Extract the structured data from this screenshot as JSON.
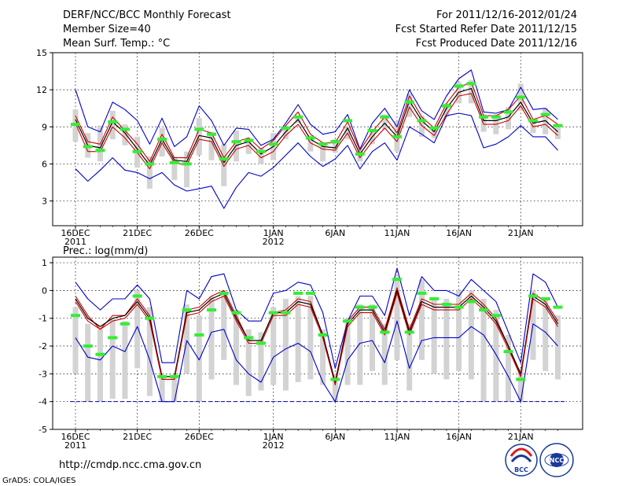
{
  "header": {
    "title": "DERF/NCC/BCC Monthly Forecast",
    "member_size": "Member Size=40",
    "variable1": "Mean Surf. Temp.: °C",
    "period": "For 2011/12/16-2012/01/24",
    "refer_date": "Fcst Started Refer Date 2011/12/15",
    "produced_date": "Fcst Produced Date 2011/12/16"
  },
  "colors": {
    "box": "#d3d3d3",
    "median": "#33ee33",
    "mean": "#000000",
    "member": "#cc0000",
    "envelope": "#0000cc",
    "threshold": "#0000aa"
  },
  "footer": {
    "url": "http://cmdp.ncc.cma.gov.cn",
    "credit": "GrADS: COLA/IGES",
    "logo_bcc": "BCC",
    "logo_ncc": "NCC"
  },
  "chart_data": [
    {
      "type": "line",
      "title": "Mean Surf. Temp.: °C",
      "ylim": [
        1,
        15
      ],
      "yticks": [
        3,
        6,
        9,
        12,
        15
      ],
      "x": [
        1,
        2,
        3,
        4,
        5,
        6,
        7,
        8,
        9,
        10,
        11,
        12,
        13,
        14,
        15,
        16,
        17,
        18,
        19,
        20,
        21,
        22,
        23,
        24,
        25,
        26,
        27,
        28,
        29,
        30,
        31,
        32,
        33,
        34,
        35,
        36,
        37,
        38,
        39,
        40
      ],
      "xticks": [
        {
          "day": 1,
          "label": "16DEC",
          "sub": "2011"
        },
        {
          "day": 6,
          "label": "21DEC"
        },
        {
          "day": 11,
          "label": "26DEC"
        },
        {
          "day": 17,
          "label": "1JAN",
          "sub": "2012"
        },
        {
          "day": 22,
          "label": "6JAN"
        },
        {
          "day": 27,
          "label": "11JAN"
        },
        {
          "day": 32,
          "label": "16JAN"
        },
        {
          "day": 37,
          "label": "21JAN"
        }
      ],
      "series": [
        {
          "name": "ensemble max",
          "values": [
            12,
            9,
            8.6,
            11,
            10.4,
            9.5,
            7.6,
            9.7,
            7.4,
            8.2,
            10.7,
            9.5,
            7.5,
            8.9,
            8.8,
            7.5,
            8,
            9.3,
            10.8,
            9.2,
            8.4,
            8.6,
            10,
            7.2,
            9.3,
            10.5,
            9,
            12,
            10.3,
            9.6,
            11.5,
            12.9,
            13.6,
            10.2,
            10.1,
            10.4,
            12.2,
            10.4,
            10.5,
            9.6
          ]
        },
        {
          "name": "member upper",
          "values": [
            9.9,
            7.8,
            7.6,
            9.8,
            8.7,
            7.6,
            6.2,
            8.4,
            6.5,
            6.5,
            8.8,
            8.5,
            6.5,
            7.8,
            8.1,
            7.2,
            7.9,
            9.1,
            10.2,
            8.4,
            7.7,
            7.7,
            9.4,
            7.1,
            8.6,
            9.8,
            8.5,
            11.5,
            9.8,
            8.9,
            10.9,
            12.2,
            12.6,
            9.9,
            9.9,
            10.4,
            11.5,
            9.6,
            9.9,
            9.2
          ]
        },
        {
          "name": "ensemble mean",
          "values": [
            9.6,
            7.5,
            7.3,
            9.4,
            8.5,
            7.2,
            5.9,
            8,
            6.3,
            6.2,
            8.3,
            8.1,
            6.1,
            7.5,
            7.8,
            6.8,
            7.4,
            8.6,
            9.6,
            8,
            7.4,
            7.3,
            8.9,
            6.8,
            8.2,
            9.3,
            8.2,
            11.1,
            9.5,
            8.6,
            10.5,
            11.8,
            12.1,
            9.5,
            9.5,
            9.8,
            11,
            9.3,
            9.5,
            8.6
          ]
        },
        {
          "name": "member lower",
          "values": [
            9.3,
            7,
            7,
            9,
            8.1,
            6.9,
            5.6,
            7.7,
            6.1,
            5.9,
            8,
            7.8,
            5.8,
            7.2,
            7.5,
            6.5,
            7,
            8.3,
            9.2,
            7.7,
            7.2,
            7.1,
            8.5,
            6.5,
            7.8,
            8.9,
            7.8,
            10.6,
            9.1,
            8.3,
            10,
            11.5,
            11.7,
            9.2,
            9.2,
            9.5,
            10.7,
            9,
            9.2,
            8.3
          ]
        },
        {
          "name": "ensemble min",
          "values": [
            5.6,
            4.6,
            5.5,
            6.5,
            5.5,
            5.3,
            4.8,
            5.3,
            4.3,
            3.8,
            4,
            4.2,
            2.4,
            4.1,
            5.3,
            5,
            5.7,
            6.7,
            7.7,
            6.6,
            5.8,
            6.4,
            7.5,
            5.6,
            7,
            7.7,
            6.3,
            9,
            8.4,
            7.7,
            9.9,
            10.1,
            9.9,
            7.3,
            7.6,
            8.2,
            9.1,
            8.2,
            8.2,
            7.1
          ]
        }
      ],
      "boxes": {
        "low": [
          7.8,
          6.5,
          6.2,
          8,
          7.5,
          5.7,
          4,
          6.6,
          4.7,
          4.1,
          6.7,
          6.3,
          4.2,
          6.2,
          6.8,
          6,
          6.3,
          8,
          9.3,
          7,
          6.2,
          6.9,
          8,
          6.2,
          7.6,
          8.8,
          7,
          9.8,
          8.2,
          8.1,
          9.8,
          10.9,
          10.9,
          8.6,
          8.4,
          8.8,
          10.3,
          8.5,
          8.4,
          8
        ],
        "high": [
          10.4,
          8.5,
          9.1,
          10.3,
          9.2,
          8.2,
          6.6,
          8.9,
          6.6,
          7,
          9.7,
          8.6,
          7.6,
          8.7,
          8.1,
          7.3,
          8.5,
          9.1,
          9.8,
          8.3,
          7.5,
          8,
          9,
          7.1,
          8.7,
          10,
          9.5,
          11.7,
          9.9,
          8.8,
          10.9,
          12.6,
          12.8,
          10,
          10,
          10.6,
          12.5,
          9.3,
          10.5,
          9.1
        ],
        "median": [
          9.2,
          7.4,
          7.1,
          9.4,
          8.8,
          7,
          6,
          8,
          6.1,
          6,
          8.8,
          8.4,
          6.4,
          7.8,
          7.9,
          7,
          7.6,
          8.9,
          9.8,
          8.1,
          7.6,
          7.8,
          9.5,
          6.8,
          8.7,
          9.8,
          8.2,
          11,
          9.5,
          8.9,
          10.7,
          12.3,
          12.5,
          9.8,
          9.8,
          10.2,
          11.4,
          9.5,
          10,
          9.1
        ]
      }
    },
    {
      "type": "line",
      "title": "Prec.: log(mm/d)",
      "ylim": [
        -5,
        1.2
      ],
      "yticks": [
        -5,
        -4,
        -3,
        -2,
        -1,
        0,
        1
      ],
      "threshold": -4,
      "x": [
        1,
        2,
        3,
        4,
        5,
        6,
        7,
        8,
        9,
        10,
        11,
        12,
        13,
        14,
        15,
        16,
        17,
        18,
        19,
        20,
        21,
        22,
        23,
        24,
        25,
        26,
        27,
        28,
        29,
        30,
        31,
        32,
        33,
        34,
        35,
        36,
        37,
        38,
        39,
        40
      ],
      "xticks": [
        {
          "day": 1,
          "label": "16DEC",
          "sub": "2011"
        },
        {
          "day": 6,
          "label": "21DEC"
        },
        {
          "day": 11,
          "label": "26DEC"
        },
        {
          "day": 17,
          "label": "1JAN",
          "sub": "2012"
        },
        {
          "day": 22,
          "label": "6JAN"
        },
        {
          "day": 27,
          "label": "11JAN"
        },
        {
          "day": 32,
          "label": "16JAN"
        },
        {
          "day": 37,
          "label": "21JAN"
        }
      ],
      "series": [
        {
          "name": "ensemble max",
          "values": [
            0.3,
            -0.3,
            -0.7,
            -0.3,
            -0.3,
            0.2,
            -0.3,
            -2.6,
            -2.6,
            0,
            -0.3,
            0.5,
            0.6,
            -0.7,
            -1.1,
            -1.1,
            -0.1,
            0,
            0.3,
            0.2,
            -0.8,
            -2.8,
            -1.1,
            -0.2,
            -0.2,
            -0.9,
            0.8,
            -0.9,
            0.5,
            0,
            0,
            -0.2,
            0.4,
            0,
            -0.4,
            -1.5,
            -2.6,
            0.6,
            0.3,
            -0.6
          ]
        },
        {
          "name": "member upper",
          "values": [
            -0.2,
            -0.9,
            -1.4,
            -0.9,
            -0.9,
            -0.3,
            -0.9,
            -3.2,
            -3.2,
            -0.7,
            -0.6,
            -0.2,
            0,
            -0.9,
            -1.8,
            -1.8,
            -0.8,
            -0.7,
            -0.3,
            -0.4,
            -1.6,
            -3.3,
            -1.1,
            -0.6,
            -0.6,
            -1.4,
            0.1,
            -1.4,
            -0.3,
            -0.5,
            -0.5,
            -0.5,
            -0.1,
            -0.5,
            -1,
            -2,
            -3.1,
            -0.1,
            -0.4,
            -1.1
          ]
        },
        {
          "name": "ensemble mean",
          "values": [
            -0.3,
            -1,
            -1.3,
            -1,
            -0.9,
            -0.4,
            -1,
            -3.1,
            -3.1,
            -0.8,
            -0.7,
            -0.3,
            -0.1,
            -1,
            -1.8,
            -1.8,
            -0.8,
            -0.8,
            -0.4,
            -0.5,
            -1.6,
            -3.3,
            -1.2,
            -0.7,
            -0.7,
            -1.5,
            0,
            -1.5,
            -0.4,
            -0.6,
            -0.6,
            -0.6,
            -0.2,
            -0.6,
            -1.1,
            -2,
            -3,
            -0.2,
            -0.5,
            -1.2
          ]
        },
        {
          "name": "member lower",
          "values": [
            -0.4,
            -1.1,
            -1.4,
            -1.1,
            -1,
            -0.5,
            -1.1,
            -3.2,
            -3.2,
            -0.9,
            -0.8,
            -0.4,
            -0.2,
            -1.1,
            -1.9,
            -1.9,
            -0.9,
            -0.9,
            -0.5,
            -0.6,
            -1.7,
            -3.4,
            -1.3,
            -0.8,
            -0.8,
            -1.6,
            -0.1,
            -1.6,
            -0.5,
            -0.7,
            -0.7,
            -0.7,
            -0.3,
            -0.7,
            -1.2,
            -2.1,
            -3.1,
            -0.3,
            -0.6,
            -1.3
          ]
        },
        {
          "name": "ensemble min",
          "values": [
            -1.7,
            -2.4,
            -2.5,
            -2,
            -2.2,
            -1.3,
            -2.5,
            -4,
            -4,
            -1.8,
            -2.5,
            -1.5,
            -1.4,
            -2.5,
            -3,
            -3.3,
            -2.4,
            -2.1,
            -1.9,
            -2.2,
            -3.3,
            -4,
            -2.5,
            -1.9,
            -1.8,
            -2.6,
            -1.1,
            -2.8,
            -1.8,
            -1.7,
            -1.7,
            -1.7,
            -1.3,
            -1.6,
            -2.3,
            -3.1,
            -4,
            -1.2,
            -1.5,
            -2
          ]
        }
      ],
      "boxes": {
        "low": [
          -3,
          -4,
          -4,
          -3.9,
          -3.9,
          -2.8,
          -3.8,
          -4,
          -4,
          -3,
          -4,
          -3.2,
          -2.5,
          -3.4,
          -3.8,
          -3.6,
          -3.4,
          -3.6,
          -3.3,
          -3.2,
          -3.4,
          -4,
          -3.4,
          -3.4,
          -2.9,
          -3.4,
          -2.5,
          -3.6,
          -2.5,
          -3,
          -3.2,
          -2.9,
          -3.2,
          -4,
          -4,
          -4,
          -4,
          -2.5,
          -2.9,
          -3.2
        ],
        "high": [
          -0.6,
          -1.2,
          -1.4,
          -1,
          -1.1,
          0,
          -0.6,
          -3.1,
          -3.1,
          -0.5,
          -0.9,
          -0.2,
          0,
          -0.7,
          -1.4,
          -1.5,
          -0.6,
          -0.3,
          -0.2,
          -0.2,
          -1.4,
          -3,
          -1,
          -0.5,
          -0.5,
          -1.2,
          0.5,
          -1.2,
          0.4,
          -0.3,
          -0.3,
          0,
          0,
          -0.3,
          -0.7,
          -1.6,
          -2.8,
          0,
          -0.3,
          -0.9
        ],
        "median": [
          -0.9,
          -2,
          -2.3,
          -1.7,
          -1.2,
          -0.2,
          -1,
          -3.1,
          -3.1,
          -0.7,
          -1.6,
          -0.7,
          -0.1,
          -0.8,
          -1.7,
          -1.9,
          -0.8,
          -0.8,
          -0.1,
          -0.1,
          -1.6,
          -3.2,
          -1.1,
          -0.6,
          -0.6,
          -1.5,
          0.4,
          -1.5,
          -0.1,
          -0.3,
          -0.5,
          -0.6,
          -0.4,
          -0.7,
          -0.9,
          -2.2,
          -3.2,
          -0.2,
          -0.3,
          -0.6
        ]
      }
    }
  ]
}
